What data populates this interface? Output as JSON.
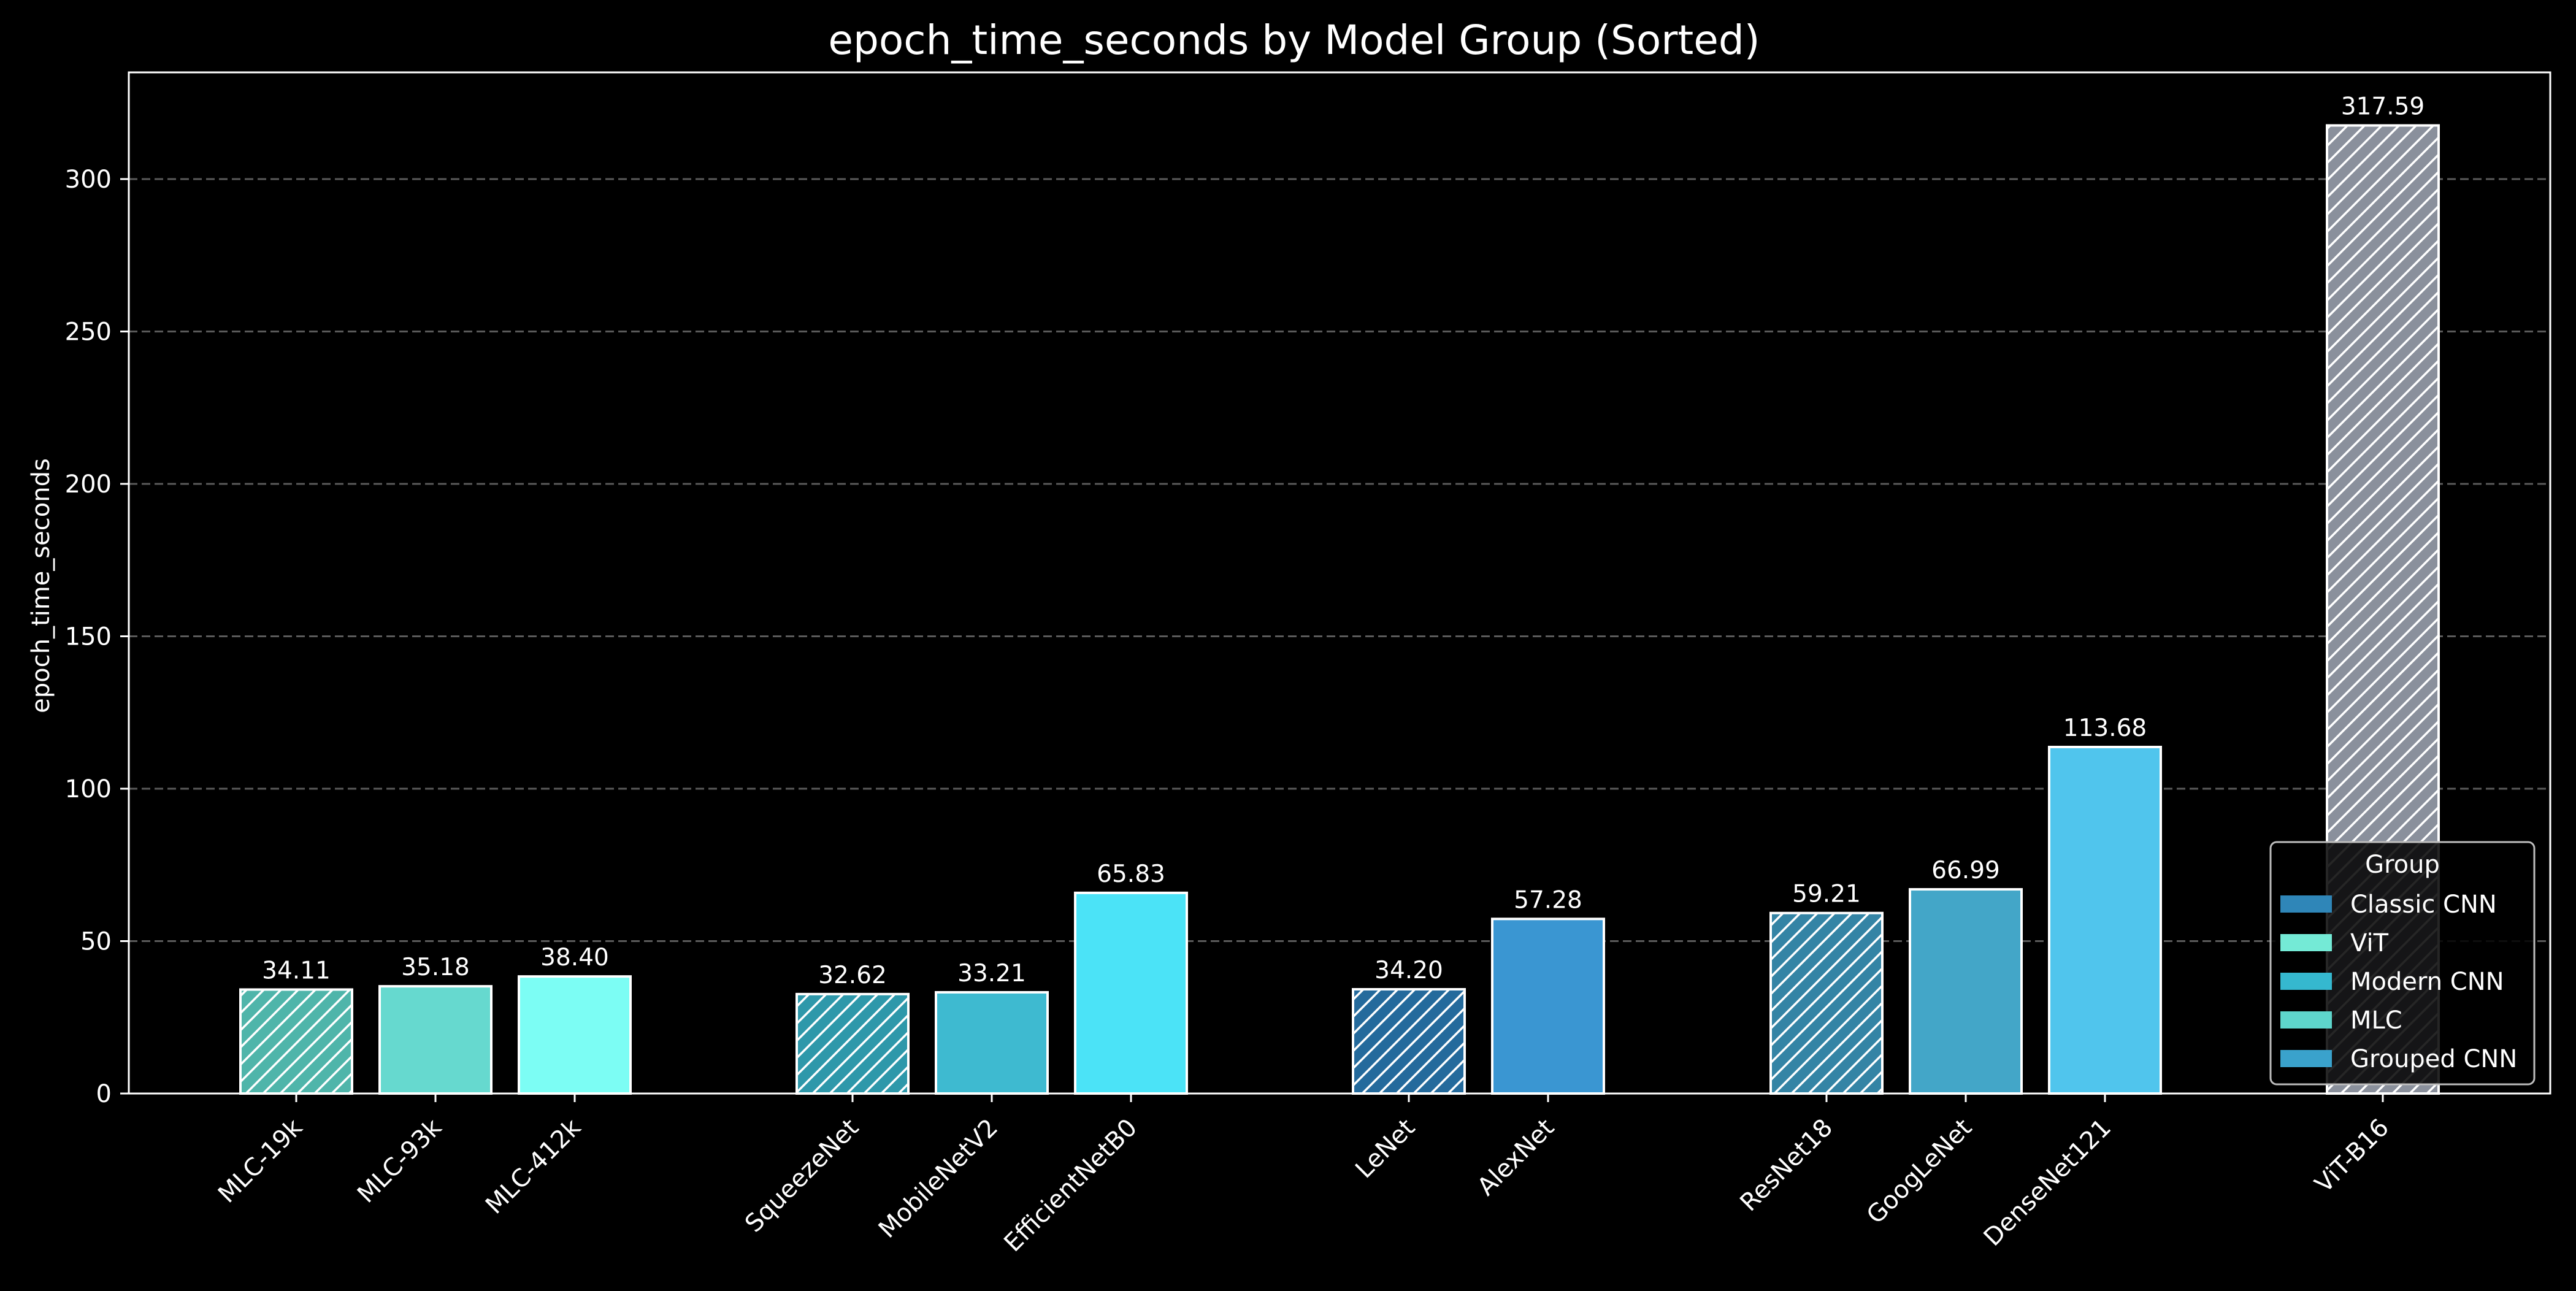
{
  "chart_data": {
    "type": "bar",
    "title": "epoch_time_seconds by Model Group (Sorted)",
    "xlabel": "",
    "ylabel": "epoch_time_seconds",
    "ylim": [
      0,
      335
    ],
    "yticks": [
      0,
      50,
      100,
      150,
      200,
      250,
      300
    ],
    "grid": "horizontal dashed",
    "legend": {
      "title": "Group",
      "placement": "lower-right",
      "entries": [
        {
          "name": "Classic CNN",
          "color": "#2f86b8"
        },
        {
          "name": "ViT",
          "color": "#74ead6"
        },
        {
          "name": "Modern CNN",
          "color": "#35b8cf"
        },
        {
          "name": "MLC",
          "color": "#5ed6cc"
        },
        {
          "name": "Grouped CNN",
          "color": "#3aa2cc"
        }
      ]
    },
    "bars": [
      {
        "category": "MLC-19k",
        "value": 34.11,
        "label": "34.11",
        "group": "MLC",
        "color": "#4fb5aa",
        "hatched": true
      },
      {
        "category": "MLC-93k",
        "value": 35.18,
        "label": "35.18",
        "group": "MLC",
        "color": "#66d9cf",
        "hatched": false
      },
      {
        "category": "MLC-412k",
        "value": 38.4,
        "label": "38.40",
        "group": "MLC",
        "color": "#7cfdf4",
        "hatched": false
      },
      {
        "category": "SqueezeNet",
        "value": 32.62,
        "label": "32.62",
        "group": "Modern CNN",
        "color": "#2e98aa",
        "hatched": true
      },
      {
        "category": "MobileNetV2",
        "value": 33.21,
        "label": "33.21",
        "group": "Modern CNN",
        "color": "#3ebad0",
        "hatched": false
      },
      {
        "category": "EfficientNetB0",
        "value": 65.83,
        "label": "65.83",
        "group": "Modern CNN",
        "color": "#4be3f7",
        "hatched": false
      },
      {
        "category": "LeNet",
        "value": 34.2,
        "label": "34.20",
        "group": "Classic CNN",
        "color": "#246a9c",
        "hatched": true
      },
      {
        "category": "AlexNet",
        "value": 57.28,
        "label": "57.28",
        "group": "Classic CNN",
        "color": "#3a96d2",
        "hatched": false
      },
      {
        "category": "ResNet18",
        "value": 59.21,
        "label": "59.21",
        "group": "Grouped CNN",
        "color": "#3484a5",
        "hatched": true
      },
      {
        "category": "GoogLeNet",
        "value": 66.99,
        "label": "66.99",
        "group": "Grouped CNN",
        "color": "#43a6c8",
        "hatched": false
      },
      {
        "category": "DenseNet121",
        "value": 113.68,
        "label": "113.68",
        "group": "Grouped CNN",
        "color": "#50c5ed",
        "hatched": false
      },
      {
        "category": "ViT-B16",
        "value": 317.59,
        "label": "317.59",
        "group": "ViT",
        "color": "#8a909c",
        "hatched": true
      }
    ]
  }
}
